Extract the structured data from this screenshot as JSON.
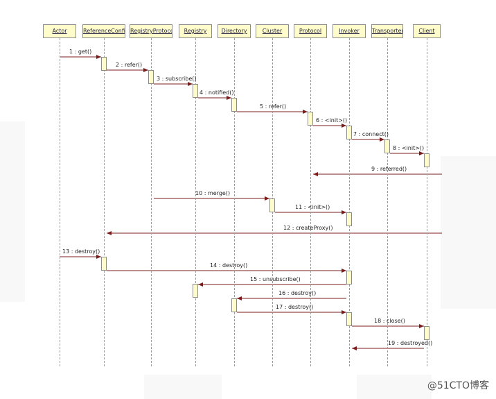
{
  "participants": [
    "Actor",
    "ReferenceConfig",
    "RegistryProtocol",
    "Registry",
    "Directory",
    "Cluster",
    "Protocol",
    "Invoker",
    "Transporter",
    "Client"
  ],
  "messages": [
    {
      "label": "1 : get()",
      "from": "Actor",
      "to": "ReferenceConfig"
    },
    {
      "label": "2 : refer()",
      "from": "ReferenceConfig",
      "to": "RegistryProtocol"
    },
    {
      "label": "3 : subscribe()",
      "from": "RegistryProtocol",
      "to": "Registry"
    },
    {
      "label": "4 : notified()",
      "from": "Registry",
      "to": "Directory"
    },
    {
      "label": "5 : refer()",
      "from": "Directory",
      "to": "Protocol"
    },
    {
      "label": "6 : <init>()",
      "from": "Protocol",
      "to": "Invoker"
    },
    {
      "label": "7 : connect()",
      "from": "Invoker",
      "to": "Transporter"
    },
    {
      "label": "8 : <init>()",
      "from": "Transporter",
      "to": "Client"
    },
    {
      "label": "9 : referred()",
      "from": "Client",
      "to": "Protocol"
    },
    {
      "label": "10 : merge()",
      "from": "RegistryProtocol",
      "to": "Cluster"
    },
    {
      "label": "11 : <init>()",
      "from": "Cluster",
      "to": "Invoker"
    },
    {
      "label": "12 : createProxy()",
      "from": "Client",
      "to": "ReferenceConfig"
    },
    {
      "label": "13 : destroy()",
      "from": "Actor",
      "to": "ReferenceConfig"
    },
    {
      "label": "14 : destroy()",
      "from": "ReferenceConfig",
      "to": "Invoker"
    },
    {
      "label": "15 : unsubscribe()",
      "from": "Invoker",
      "to": "Registry"
    },
    {
      "label": "16 : destroy()",
      "from": "Invoker",
      "to": "Directory"
    },
    {
      "label": "17 : destroy()",
      "from": "Directory",
      "to": "Invoker"
    },
    {
      "label": "18 : close()",
      "from": "Invoker",
      "to": "Client"
    },
    {
      "label": "19 : destroyed()",
      "from": "Client",
      "to": "Invoker"
    }
  ],
  "watermark": "@51CTO博客",
  "colors": {
    "header_fill": "#fffccc",
    "border": "#8c8c8c",
    "message": "#7b1c1c",
    "lifeline": "#9a9a9a"
  }
}
